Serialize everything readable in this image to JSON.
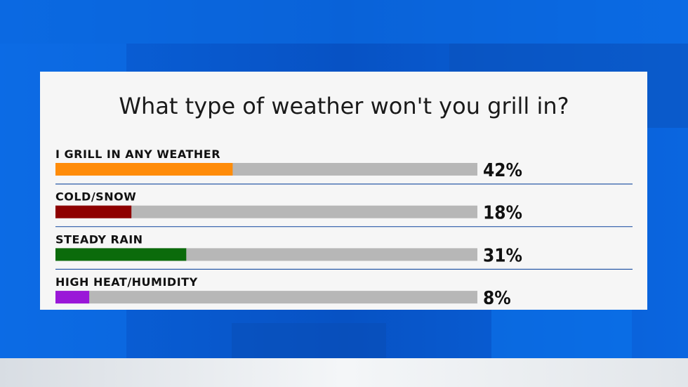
{
  "chart_data": {
    "type": "bar",
    "orientation": "horizontal",
    "title": "What type of weather won't you grill in?",
    "categories": [
      "I GRILL IN ANY WEATHER",
      "COLD/SNOW",
      "STEADY RAIN",
      "HIGH HEAT/HUMIDITY"
    ],
    "values": [
      42,
      18,
      31,
      8
    ],
    "value_labels": [
      "42%",
      "18%",
      "31%",
      "8%"
    ],
    "colors": [
      "#ff8c0a",
      "#8e0000",
      "#0b6b0b",
      "#9a17d8"
    ],
    "xlim": [
      0,
      100
    ]
  }
}
